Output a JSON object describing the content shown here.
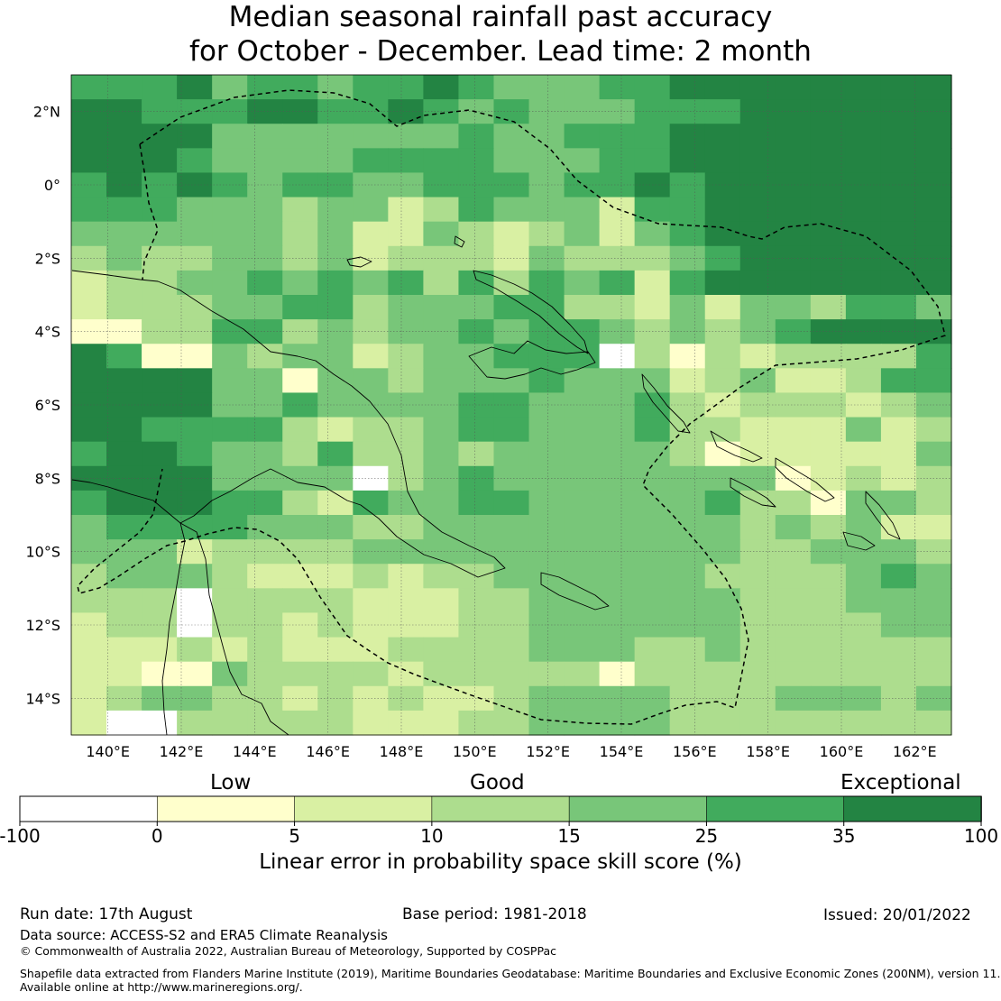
{
  "title": {
    "line1": "Median seasonal rainfall past accuracy",
    "line2": "for October - December. Lead time: 2 month"
  },
  "map": {
    "lon_range": [
      139,
      163
    ],
    "lat_range": [
      -15,
      3
    ],
    "lon_ticks": [
      {
        "value": 140,
        "label": "140°E"
      },
      {
        "value": 142,
        "label": "142°E"
      },
      {
        "value": 144,
        "label": "144°E"
      },
      {
        "value": 146,
        "label": "146°E"
      },
      {
        "value": 148,
        "label": "148°E"
      },
      {
        "value": 150,
        "label": "150°E"
      },
      {
        "value": 152,
        "label": "152°E"
      },
      {
        "value": 154,
        "label": "154°E"
      },
      {
        "value": 156,
        "label": "156°E"
      },
      {
        "value": 158,
        "label": "158°E"
      },
      {
        "value": 160,
        "label": "160°E"
      },
      {
        "value": 162,
        "label": "162°E"
      }
    ],
    "lat_ticks": [
      {
        "value": 2,
        "label": "2°N"
      },
      {
        "value": 0,
        "label": "0°"
      },
      {
        "value": -2,
        "label": "2°S"
      },
      {
        "value": -4,
        "label": "4°S"
      },
      {
        "value": -6,
        "label": "6°S"
      },
      {
        "value": -8,
        "label": "8°S"
      },
      {
        "value": -10,
        "label": "10°S"
      },
      {
        "value": -12,
        "label": "12°S"
      },
      {
        "value": -14,
        "label": "14°S"
      }
    ],
    "grid_lines": true,
    "layers": [
      "LEPS skill score grid",
      "Coastlines",
      "EEZ boundary (dashed)"
    ]
  },
  "legend": {
    "categories": [
      "Low",
      "Good",
      "Exceptional"
    ],
    "bins": [
      {
        "from": -100,
        "to": 0,
        "color": "#ffffff"
      },
      {
        "from": 0,
        "to": 5,
        "color": "#ffffcc"
      },
      {
        "from": 5,
        "to": 10,
        "color": "#d9f0a3"
      },
      {
        "from": 10,
        "to": 15,
        "color": "#addd8e"
      },
      {
        "from": 15,
        "to": 25,
        "color": "#78c679"
      },
      {
        "from": 25,
        "to": 35,
        "color": "#41ab5d"
      },
      {
        "from": 35,
        "to": 100,
        "color": "#238443"
      }
    ],
    "tick_labels": [
      "-100",
      "0",
      "5",
      "10",
      "15",
      "25",
      "35",
      "100"
    ],
    "title": "Linear error in probability space skill score (%)"
  },
  "footer": {
    "run_date": "Run date: 17th August",
    "base_period": "Base period: 1981-2018",
    "issued": "Issued: 20/01/2022",
    "data_source": "Data source: ACCESS-S2 and ERA5 Climate Reanalysis",
    "copyright": "© Commonwealth of Australia 2022, Australian Bureau of Meteorology, Supported by COSPPac",
    "shapefile_line1": "Shapefile data extracted from Flanders Marine Institute (2019), Maritime Boundaries Geodatabase: Maritime Boundaries and Exclusive Economic Zones (200NM), version 11.",
    "shapefile_line2": "Available online at http://www.marineregions.org/."
  },
  "grid_rows": [
    "5556455455654445566666666",
    "6655566556545444555666666",
    "6666444444454455566666666",
    "6665444455554445566666666",
    "5656545544555455656666666",
    "5554443442354442556666666",
    "4444443422432342456666666",
    "3433443423332433345666666",
    "2334454545353545256666666",
    "2333445534445533242443554",
    "1133553434454554343456666",
    "6511434423445550313233335",
    "6666441443444544423422355",
    "6666445444455444532333234",
    "6655553233455444533222423",
    "5665443533434444431222224",
    "6666444403454444444412323",
    "5666553254455444445331443",
    "4555544433444444444343422",
    "4442333344444444444334443",
    "3444322232334444443333454",
    "3330333322233444444333444",
    "2330332322233444444333344",
    "2223232223333444334333333",
    "2211433332333331333333333",
    "2344332323223444433344434",
    "2003333322233444433333333"
  ]
}
